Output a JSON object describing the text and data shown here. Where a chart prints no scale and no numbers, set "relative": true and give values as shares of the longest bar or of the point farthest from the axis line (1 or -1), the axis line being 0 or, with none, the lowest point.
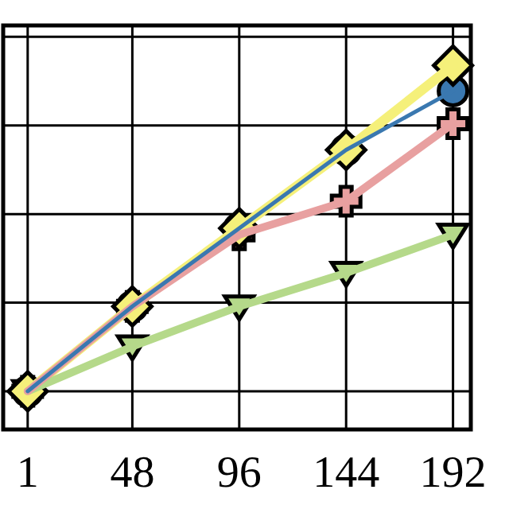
{
  "chart_data": {
    "type": "line",
    "relative": true,
    "x": [
      1,
      48,
      96,
      144,
      192
    ],
    "xlim": [
      -10,
      200
    ],
    "xticks": [
      1,
      48,
      96,
      144,
      192
    ],
    "grid": true,
    "series": [
      {
        "color": "#3a78b0",
        "marker": "circle",
        "values": [
          0.105,
          0.338,
          0.553,
          0.768,
          0.93
        ]
      },
      {
        "color": "#e8a0a0",
        "marker": "cross",
        "values": [
          0.105,
          0.338,
          0.535,
          0.627,
          0.84
        ]
      },
      {
        "color": "#b5d98a",
        "marker": "triangle",
        "values": [
          0.105,
          0.228,
          0.338,
          0.43,
          0.535
        ]
      },
      {
        "color": "#f5f07a",
        "marker": "diamond",
        "values": [
          0.105,
          0.338,
          0.553,
          0.768,
          1
        ]
      }
    ]
  }
}
